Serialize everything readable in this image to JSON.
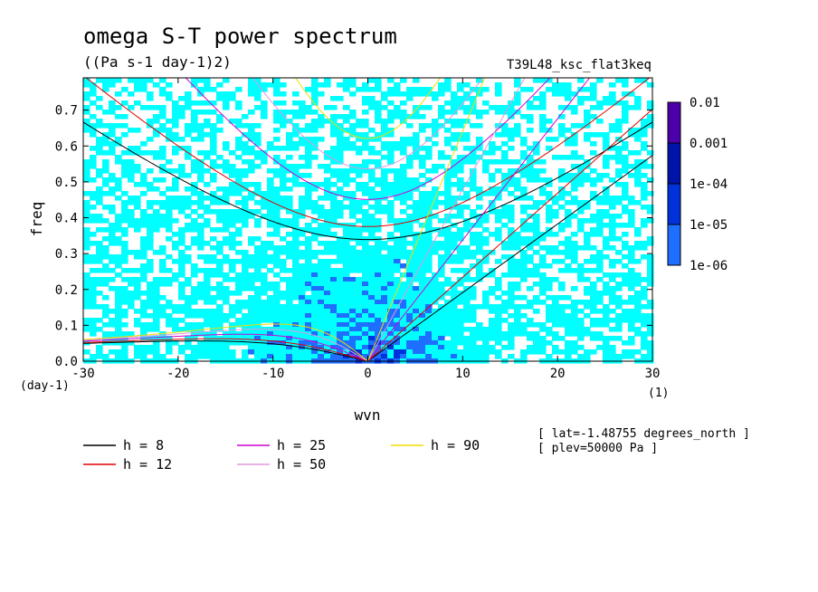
{
  "chart_data": {
    "type": "heatmap",
    "title": "omega S-T power spectrum",
    "subtitle": "((Pa s-1 day-1)2)",
    "run_label": "T39L48_ksc_flat3keq",
    "xlabel": "wvn",
    "ylabel": "freq",
    "x_unit": "(1)",
    "y_unit": "(day-1)",
    "xlim": [
      -30,
      30
    ],
    "ylim": [
      0,
      0.79
    ],
    "x_ticks": [
      -30,
      -20,
      -10,
      0,
      10,
      20,
      30
    ],
    "x_tick_labels": [
      "-30",
      "-20",
      "-10",
      "0",
      "10",
      "20",
      "30"
    ],
    "y_ticks": [
      0,
      0.1,
      0.2,
      0.3,
      0.4,
      0.5,
      0.6,
      0.7
    ],
    "y_tick_labels": [
      "0.0",
      "0.1",
      "0.2",
      "0.3",
      "0.4",
      "0.5",
      "0.6",
      "0.7"
    ],
    "colorbar": {
      "labels": [
        "0.01",
        "0.001",
        "1e-04",
        "1e-05",
        "1e-06"
      ],
      "levels": [
        1e-06,
        1e-05,
        0.0001,
        0.001,
        0.01
      ],
      "colors": [
        "#00ffff",
        "#1e6eff",
        "#0032dc",
        "#0014aa",
        "#4b00aa"
      ]
    },
    "dispersion_curves": [
      {
        "label": "h = 8",
        "h": 8,
        "color": "#000000"
      },
      {
        "label": "h = 12",
        "h": 12,
        "color": "#e00000"
      },
      {
        "label": "h = 25",
        "h": 25,
        "color": "#d000d0"
      },
      {
        "label": "h = 50",
        "h": 50,
        "color": "#dd99dd"
      },
      {
        "label": "h = 90",
        "h": 90,
        "color": "#eedd00"
      }
    ],
    "info_lines": [
      "[ lat=-1.48755 degrees_north ]",
      "[ plev=50000 Pa ]"
    ]
  }
}
